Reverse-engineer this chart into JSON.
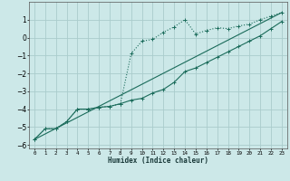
{
  "xlabel": "Humidex (Indice chaleur)",
  "ylabel": "",
  "background_color": "#cce8e8",
  "grid_color": "#aacccc",
  "line_color": "#1a6b5a",
  "xlim": [
    -0.5,
    23.5
  ],
  "ylim": [
    -6.2,
    2.0
  ],
  "xticks": [
    0,
    1,
    2,
    3,
    4,
    5,
    6,
    7,
    8,
    9,
    10,
    11,
    12,
    13,
    14,
    15,
    16,
    17,
    18,
    19,
    20,
    21,
    22,
    23
  ],
  "yticks": [
    -6,
    -5,
    -4,
    -3,
    -2,
    -1,
    0,
    1
  ],
  "line1_x": [
    0,
    1,
    2,
    3,
    4,
    5,
    6,
    7,
    8,
    9,
    10,
    11,
    12,
    13,
    14,
    15,
    16,
    17,
    18,
    19,
    20,
    21,
    22,
    23
  ],
  "line1_y": [
    -5.7,
    -5.1,
    -5.1,
    -4.7,
    -4.0,
    -4.0,
    -3.9,
    -3.85,
    -3.7,
    -0.9,
    -0.2,
    -0.1,
    0.3,
    0.6,
    1.0,
    0.2,
    0.4,
    0.55,
    0.5,
    0.65,
    0.75,
    1.0,
    1.2,
    1.4
  ],
  "line2_x": [
    0,
    1,
    2,
    3,
    4,
    5,
    6,
    7,
    8,
    9,
    10,
    11,
    12,
    13,
    14,
    15,
    16,
    17,
    18,
    19,
    20,
    21,
    22,
    23
  ],
  "line2_y": [
    -5.7,
    -5.1,
    -5.1,
    -4.7,
    -4.0,
    -4.0,
    -3.9,
    -3.85,
    -3.7,
    -3.5,
    -3.4,
    -3.1,
    -2.9,
    -2.5,
    -1.9,
    -1.7,
    -1.4,
    -1.1,
    -0.8,
    -0.5,
    -0.2,
    0.1,
    0.5,
    0.9
  ],
  "line3_x": [
    0,
    23
  ],
  "line3_y": [
    -5.7,
    1.4
  ],
  "marker": "+"
}
